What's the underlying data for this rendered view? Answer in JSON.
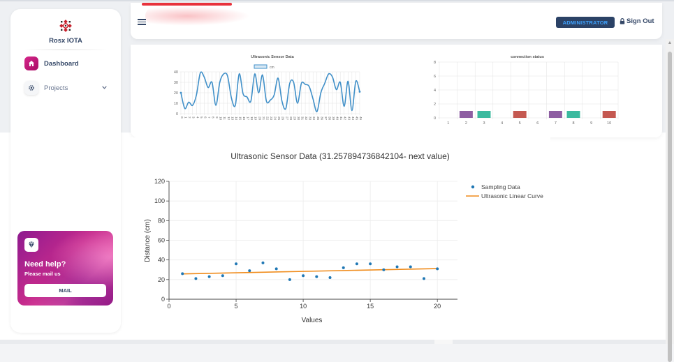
{
  "brand": {
    "name": "Rosx IOTA"
  },
  "sidebar": {
    "items": [
      {
        "label": "Dashboard",
        "icon": "home-icon"
      },
      {
        "label": "Projects",
        "icon": "gear-icon"
      }
    ]
  },
  "help_card": {
    "title": "Need help?",
    "subtitle": "Please mail us",
    "button": "MAIL"
  },
  "header": {
    "role_badge": "ADMINISTRATOR",
    "signout": "Sign Out"
  },
  "colors": {
    "accent": "#cb0c9f",
    "badge_bg": "#2b4266",
    "badge_text": "#3fa3ff",
    "line_blue": "#3f8fc8",
    "orange": "#f08c1c",
    "purple": "#8e5ea2",
    "teal": "#3cba9f",
    "red": "#c45850"
  },
  "chart_data": [
    {
      "type": "line",
      "title": "Ultrasonic Sensor Data",
      "legend": [
        "cm"
      ],
      "ylim": [
        0,
        40
      ],
      "yticks": [
        0,
        10,
        20,
        30,
        40
      ],
      "x": [
        0,
        1,
        2,
        3,
        4,
        5,
        6,
        7,
        8,
        9,
        10,
        11,
        12,
        13,
        14,
        15,
        16,
        17,
        18,
        19,
        20,
        21,
        22,
        23,
        24,
        25,
        26,
        27,
        28,
        29,
        30,
        31,
        32,
        33,
        34,
        35,
        36,
        37,
        38,
        39,
        40,
        41,
        42,
        43,
        44,
        45,
        46
      ],
      "series": [
        {
          "name": "cm",
          "values": [
            20,
            5,
            11,
            8,
            18,
            39,
            35,
            25,
            30,
            8,
            30,
            38,
            36,
            15,
            8,
            38,
            19,
            16,
            12,
            38,
            20,
            37,
            12,
            13,
            18,
            34,
            12,
            5,
            29,
            30,
            10,
            29,
            28,
            26,
            14,
            2,
            20,
            29,
            38,
            35,
            23,
            30,
            7,
            31,
            3,
            31,
            21
          ]
        }
      ]
    },
    {
      "type": "bar",
      "title": "connection status",
      "categories": [
        "1",
        "2",
        "3",
        "4",
        "5",
        "6",
        "7",
        "8",
        "9",
        "10"
      ],
      "ylim": [
        0,
        8
      ],
      "yticks": [
        0,
        2,
        4,
        6,
        8
      ],
      "values": [
        0,
        1,
        1,
        0,
        1,
        0,
        1,
        1,
        0,
        1
      ],
      "bar_colors": [
        "#8e5ea2",
        "#8e5ea2",
        "#3cba9f",
        "#3cba9f",
        "#c45850",
        "#c45850",
        "#8e5ea2",
        "#3cba9f",
        "#3cba9f",
        "#c45850"
      ]
    },
    {
      "type": "scatter",
      "title": "Ultrasonic Sensor Data (31.257894736842104- next value)",
      "xlabel": "Values",
      "ylabel": "Distance (cm)",
      "xlim": [
        0,
        21.5
      ],
      "ylim": [
        0,
        120
      ],
      "xticks": [
        0,
        5,
        10,
        15,
        20
      ],
      "yticks": [
        0,
        20,
        40,
        60,
        80,
        100,
        120
      ],
      "legend": "top-right",
      "series": [
        {
          "name": "Sampling Data",
          "x": [
            1,
            2,
            3,
            4,
            5,
            6,
            7,
            8,
            9,
            10,
            11,
            12,
            13,
            14,
            15,
            16,
            17,
            18,
            19,
            20
          ],
          "values": [
            26,
            21,
            23,
            24,
            36,
            29,
            37,
            31,
            20,
            24,
            23,
            22,
            32,
            36,
            36,
            30,
            33,
            33,
            21,
            31
          ]
        },
        {
          "name": "Ultrasonic Linear Curve",
          "x": [
            1,
            20
          ],
          "values": [
            25.8,
            31.2
          ]
        }
      ]
    }
  ]
}
